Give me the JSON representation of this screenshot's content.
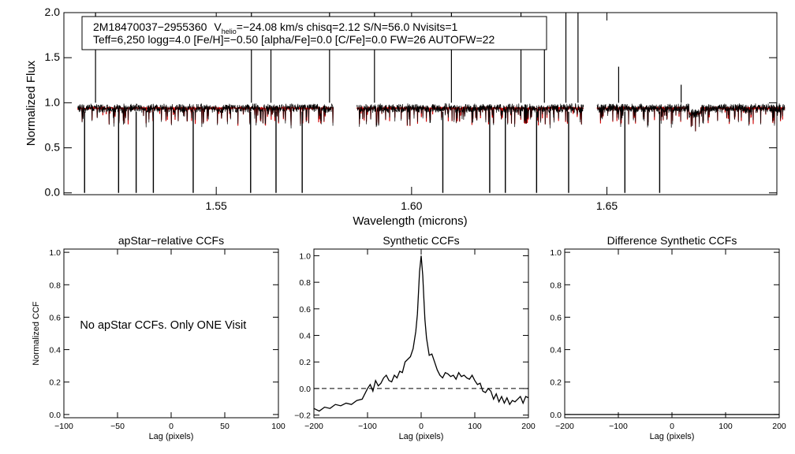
{
  "chart_data": [
    {
      "type": "line",
      "id": "spectrum",
      "title_lines": [
        {
          "object": "2M18470037−2955360",
          "v_symbol": "V",
          "v_sub": "helio",
          "v_rest": "=−24.08 km/s  chisq=2.12  S/N=56.0  Nvisits=1"
        },
        {
          "text": "Teff=6,250 logg=4.0 [Fe/H]=−0.50 [alpha/Fe]=0.0 [C/Fe]=0.0 FW=26 AUTOFW=22"
        }
      ],
      "xlabel": "Wavelength (microns)",
      "ylabel": "Normalized Flux",
      "xlim": [
        1.511,
        1.6935
      ],
      "ylim": [
        -0.02,
        2.0
      ],
      "xticks": [
        "1.55",
        "1.60",
        "1.65"
      ],
      "xtick_values": [
        1.55,
        1.6,
        1.65
      ],
      "yticks": [
        "0.0",
        "0.5",
        "1.0",
        "1.5",
        "2.0"
      ],
      "ytick_values": [
        0.0,
        0.5,
        1.0,
        1.5,
        2.0
      ],
      "chips": [
        [
          1.5145,
          1.58
        ],
        [
          1.586,
          1.644
        ],
        [
          1.6475,
          1.6955
        ]
      ],
      "continuum": 0.95,
      "series": [
        {
          "name": "observed spectrum",
          "color": "#000000"
        },
        {
          "name": "synthetic fit",
          "color": "#d00000"
        }
      ],
      "absorption_lines": [
        {
          "x": 1.5163,
          "y": 0.0
        },
        {
          "x": 1.525,
          "y": 0.0
        },
        {
          "x": 1.5295,
          "y": 0.0
        },
        {
          "x": 1.5339,
          "y": 0.0
        },
        {
          "x": 1.5441,
          "y": 0.0
        },
        {
          "x": 1.5588,
          "y": 0.0
        },
        {
          "x": 1.5653,
          "y": 0.0
        },
        {
          "x": 1.572,
          "y": 0.0
        },
        {
          "x": 1.608,
          "y": 0.0
        },
        {
          "x": 1.62,
          "y": 0.0
        },
        {
          "x": 1.624,
          "y": 0.0
        },
        {
          "x": 1.632,
          "y": 0.0
        },
        {
          "x": 1.6402,
          "y": 0.0
        },
        {
          "x": 1.6546,
          "y": 0.0
        },
        {
          "x": 1.6635,
          "y": 0.0
        }
      ],
      "emission_lines": [
        {
          "x": 1.5191,
          "y": 2.0
        },
        {
          "x": 1.559,
          "y": 2.0
        },
        {
          "x": 1.564,
          "y": 1.8
        },
        {
          "x": 1.579,
          "y": 2.0
        },
        {
          "x": 1.5905,
          "y": 2.0
        },
        {
          "x": 1.6102,
          "y": 2.0
        },
        {
          "x": 1.628,
          "y": 2.0
        },
        {
          "x": 1.634,
          "y": 1.6
        },
        {
          "x": 1.6395,
          "y": 2.0
        },
        {
          "x": 1.6426,
          "y": 2.0
        },
        {
          "x": 1.653,
          "y": 1.4
        },
        {
          "x": 1.669,
          "y": 1.2
        }
      ]
    },
    {
      "type": "line",
      "id": "apstar_ccf",
      "title": "apStar−relative CCFs",
      "xlabel": "Lag (pixels)",
      "ylabel": "Normalized CCF",
      "xlim": [
        -100,
        100
      ],
      "ylim": [
        -0.02,
        1.02
      ],
      "xticks": [
        "−100",
        "−50",
        "0",
        "50",
        "100"
      ],
      "xtick_values": [
        -100,
        -50,
        0,
        50,
        100
      ],
      "yticks": [
        "0.0",
        "0.2",
        "0.4",
        "0.6",
        "0.8",
        "1.0"
      ],
      "ytick_values": [
        0.0,
        0.2,
        0.4,
        0.6,
        0.8,
        1.0
      ],
      "annotation": "No apStar CCFs.  Only ONE Visit",
      "annotation_x": -85,
      "annotation_y": 0.53
    },
    {
      "type": "line",
      "id": "synthetic_ccf",
      "title": "Synthetic CCFs",
      "xlabel": "Lag (pixels)",
      "ylabel": "",
      "xlim": [
        -200,
        200
      ],
      "ylim": [
        -0.22,
        1.05
      ],
      "xticks": [
        "−200",
        "−100",
        "0",
        "100",
        "200"
      ],
      "xtick_values": [
        -200,
        -100,
        0,
        100,
        200
      ],
      "yticks": [
        "−0.2",
        "0.0",
        "0.2",
        "0.4",
        "0.6",
        "0.8",
        "1.0"
      ],
      "ytick_values": [
        -0.2,
        0.0,
        0.2,
        0.4,
        0.6,
        0.8,
        1.0
      ],
      "zero_line": 0.0,
      "series": [
        {
          "name": "synthetic CCF",
          "x": [
            -200,
            -190,
            -180,
            -170,
            -160,
            -150,
            -140,
            -130,
            -120,
            -110,
            -100,
            -95,
            -90,
            -85,
            -80,
            -75,
            -70,
            -65,
            -60,
            -55,
            -50,
            -45,
            -40,
            -35,
            -30,
            -25,
            -20,
            -15,
            -10,
            -7,
            -5,
            -3,
            0,
            3,
            5,
            7,
            10,
            15,
            20,
            25,
            30,
            35,
            40,
            45,
            50,
            55,
            60,
            65,
            70,
            75,
            80,
            85,
            90,
            95,
            100,
            105,
            110,
            115,
            120,
            125,
            130,
            135,
            140,
            145,
            150,
            155,
            160,
            165,
            170,
            175,
            180,
            185,
            190,
            195,
            200
          ],
          "values": [
            -0.15,
            -0.17,
            -0.14,
            -0.15,
            -0.12,
            -0.13,
            -0.11,
            -0.12,
            -0.09,
            -0.08,
            0.0,
            0.03,
            -0.02,
            0.06,
            0.02,
            0.04,
            0.08,
            0.1,
            0.06,
            0.05,
            0.1,
            0.08,
            0.13,
            0.12,
            0.2,
            0.22,
            0.24,
            0.3,
            0.43,
            0.56,
            0.72,
            0.88,
            1.0,
            0.85,
            0.68,
            0.52,
            0.38,
            0.25,
            0.26,
            0.2,
            0.14,
            0.1,
            0.08,
            0.12,
            0.11,
            0.09,
            0.1,
            0.07,
            0.12,
            0.09,
            0.1,
            0.08,
            0.07,
            0.1,
            0.06,
            0.03,
            0.04,
            -0.02,
            -0.03,
            0.0,
            -0.02,
            -0.08,
            -0.04,
            -0.1,
            -0.06,
            -0.11,
            -0.07,
            -0.12,
            -0.09,
            -0.1,
            -0.08,
            -0.06,
            -0.11,
            -0.06,
            -0.07
          ]
        }
      ]
    },
    {
      "type": "line",
      "id": "difference_ccf",
      "title": "Difference Synthetic CCFs",
      "xlabel": "Lag (pixels)",
      "ylabel": "",
      "xlim": [
        -200,
        200
      ],
      "ylim": [
        -0.02,
        1.02
      ],
      "xticks": [
        "−200",
        "−100",
        "0",
        "100",
        "200"
      ],
      "xtick_values": [
        -200,
        -100,
        0,
        100,
        200
      ],
      "yticks": [
        "0.0",
        "0.2",
        "0.4",
        "0.6",
        "0.8",
        "1.0"
      ],
      "ytick_values": [
        0.0,
        0.2,
        0.4,
        0.6,
        0.8,
        1.0
      ],
      "series": [
        {
          "name": "difference CCF",
          "x": [
            -200,
            200
          ],
          "values": [
            0.0,
            0.0
          ]
        }
      ]
    }
  ]
}
